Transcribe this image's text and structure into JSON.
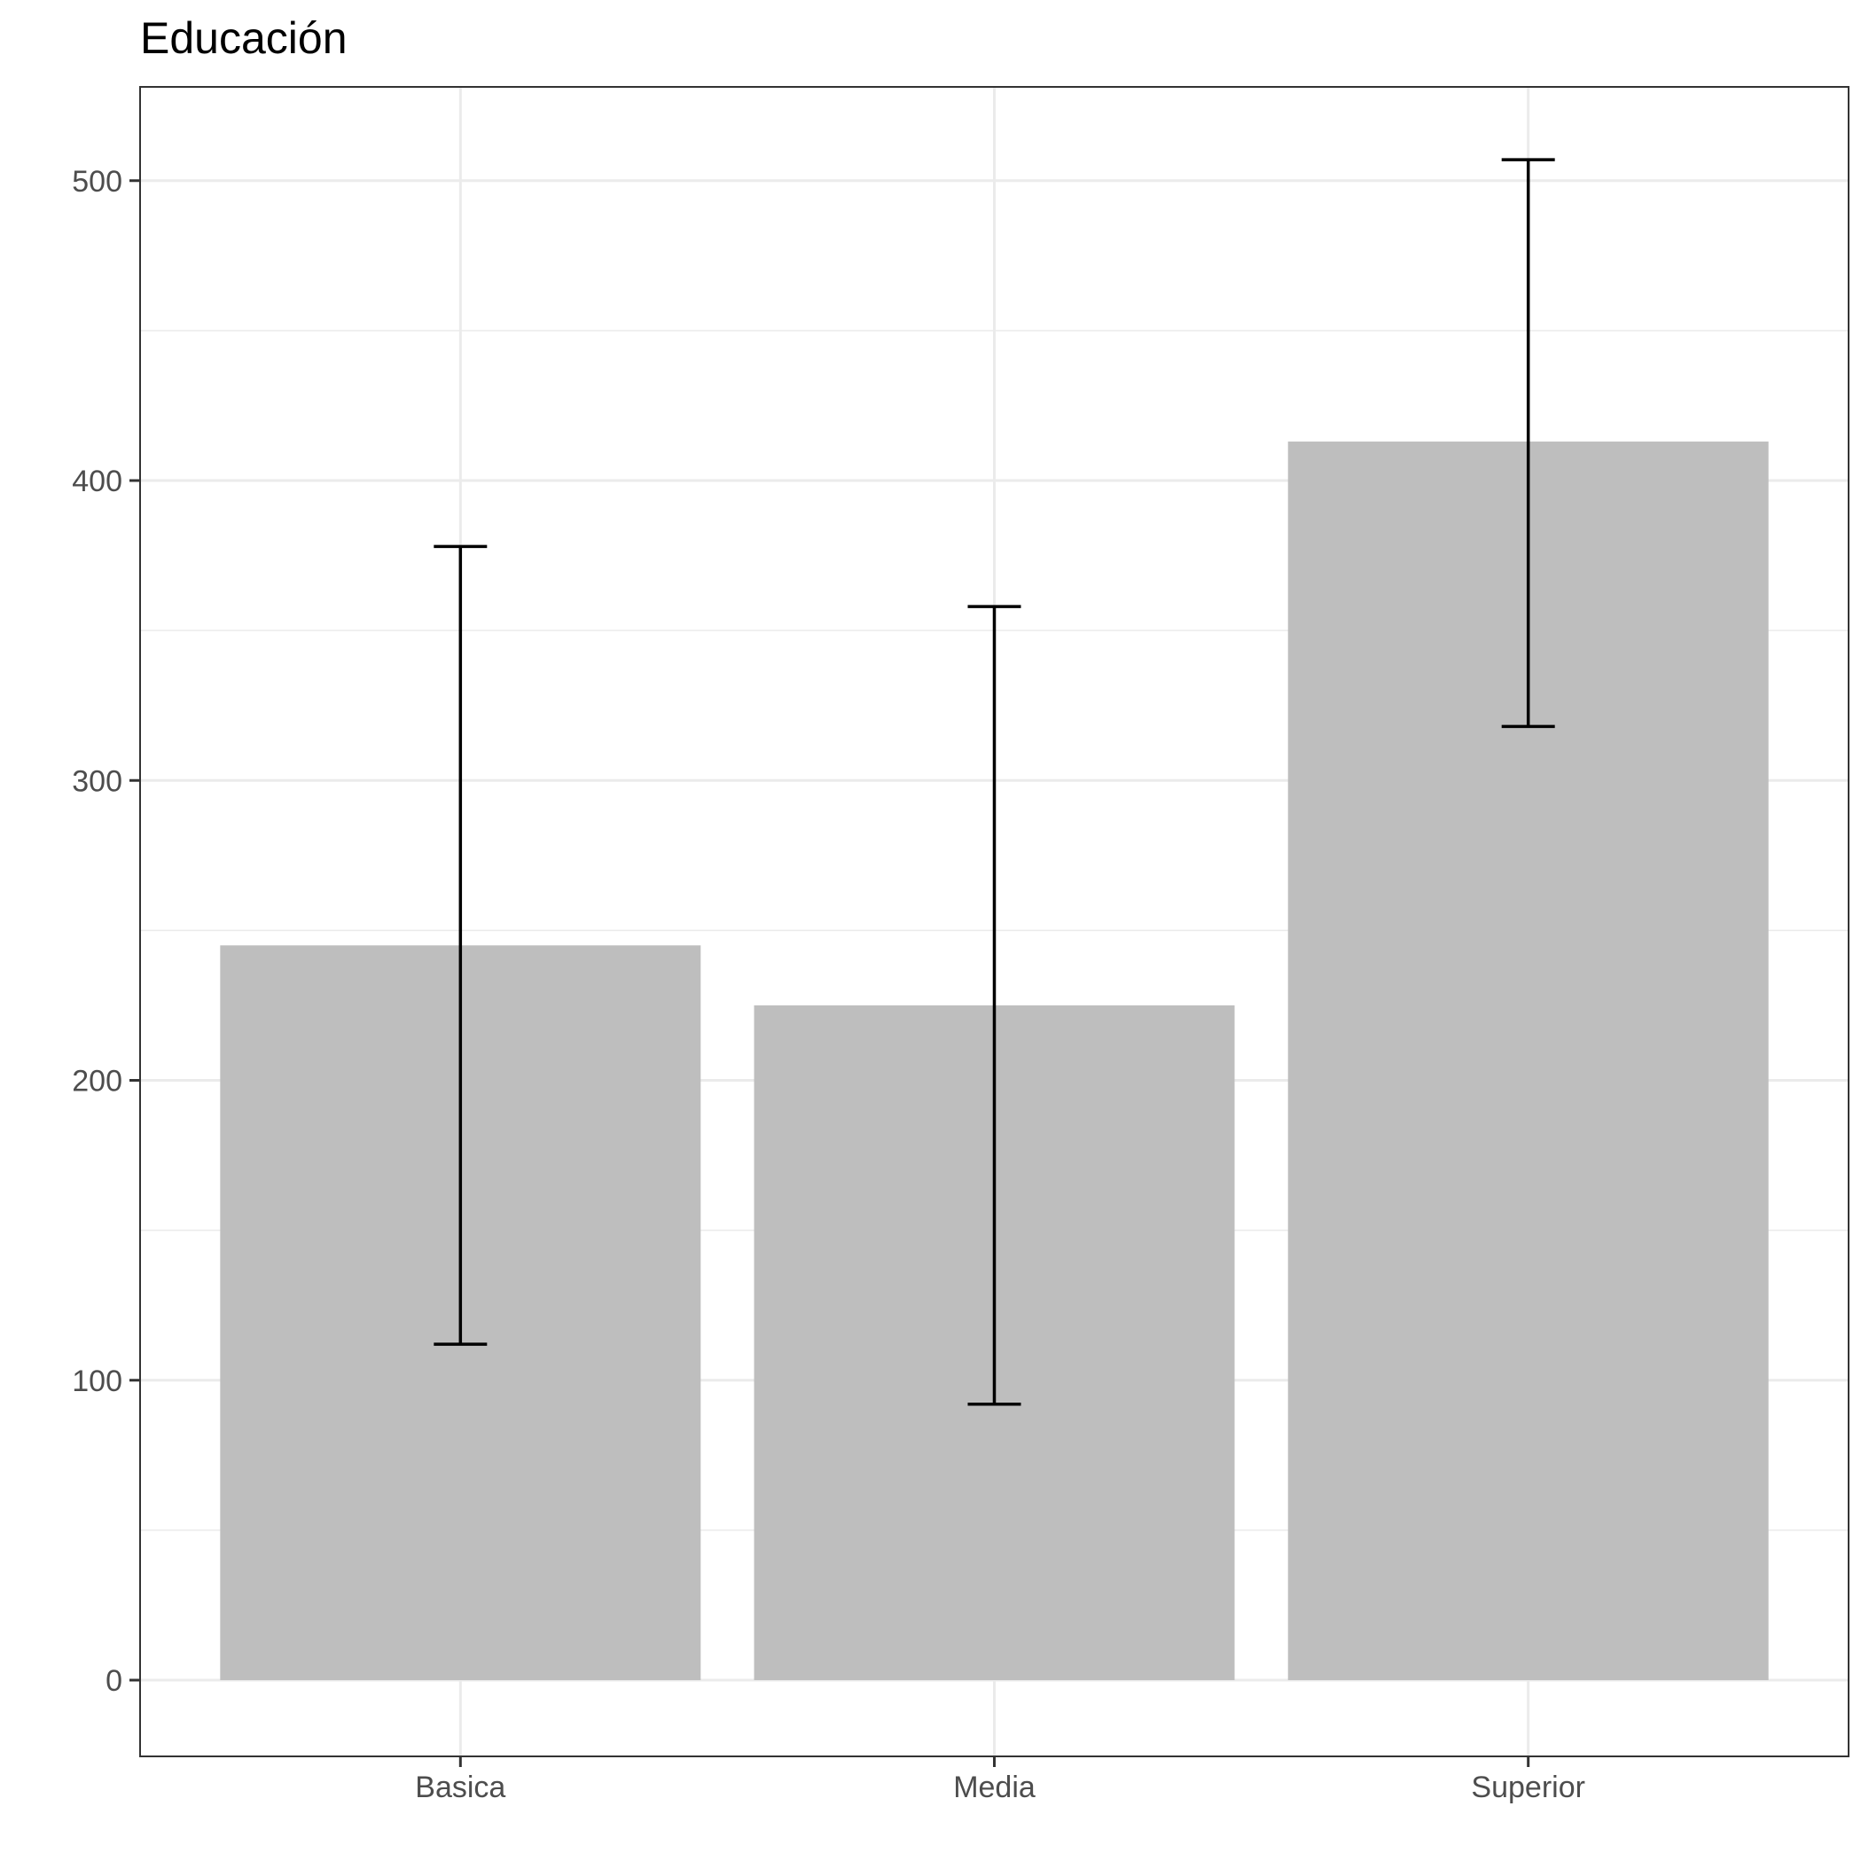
{
  "chart_data": {
    "type": "bar",
    "title": "Educación",
    "xlabel": "",
    "ylabel": "",
    "categories": [
      "Basica",
      "Media",
      "Superior"
    ],
    "values": [
      245,
      225,
      413
    ],
    "error_bars": [
      {
        "lower": 112,
        "upper": 378
      },
      {
        "lower": 92,
        "upper": 358
      },
      {
        "lower": 318,
        "upper": 507
      }
    ],
    "ylim": [
      -25,
      532
    ],
    "yticks": [
      0,
      100,
      200,
      300,
      400,
      500
    ],
    "ytick_labels": [
      "0",
      "100",
      "200",
      "300",
      "400",
      "500"
    ],
    "grid": true,
    "legend": "none",
    "colors": {
      "bar": "#bebebe",
      "error_bar": "#000000",
      "grid": "#ebebeb",
      "panel_border": "#333333"
    }
  }
}
